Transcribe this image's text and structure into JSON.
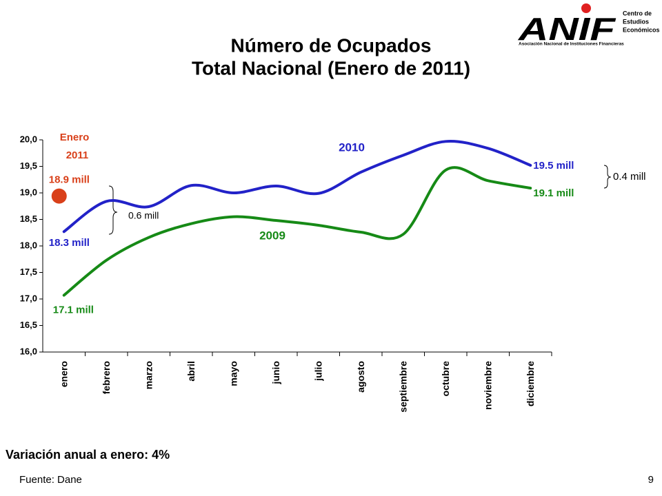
{
  "chart_data": {
    "type": "line",
    "title": [
      "Número de Ocupados",
      "Total Nacional (Enero de 2011)"
    ],
    "categories": [
      "enero",
      "febrero",
      "marzo",
      "abril",
      "mayo",
      "junio",
      "julio",
      "agosto",
      "septiembre",
      "octubre",
      "noviembre",
      "diciembre"
    ],
    "series": [
      {
        "name": "2010",
        "color": "#2222c8",
        "values": [
          18.27,
          18.84,
          18.74,
          19.14,
          19.0,
          19.13,
          18.99,
          19.39,
          19.71,
          19.97,
          19.84,
          19.52
        ],
        "value_labels": [
          "18.3 mill",
          null,
          null,
          null,
          null,
          null,
          null,
          null,
          null,
          null,
          null,
          "19.5 mill"
        ]
      },
      {
        "name": "2009",
        "color": "#168a16",
        "values": [
          17.07,
          17.73,
          18.16,
          18.42,
          18.55,
          18.48,
          18.39,
          18.26,
          18.22,
          19.43,
          19.23,
          19.09
        ],
        "value_labels": [
          "17.1 mill",
          null,
          null,
          null,
          null,
          null,
          null,
          null,
          null,
          null,
          null,
          "19.1 mill"
        ]
      },
      {
        "name": "Enero 2011",
        "color": "#d9401a",
        "values": [
          18.94,
          null,
          null,
          null,
          null,
          null,
          null,
          null,
          null,
          null,
          null,
          null
        ],
        "value_labels": [
          "18.9 mill",
          null,
          null,
          null,
          null,
          null,
          null,
          null,
          null,
          null,
          null,
          null
        ]
      }
    ],
    "ylim": [
      16.0,
      20.0
    ],
    "yticks": [
      {
        "value": 16.0,
        "label": "16,0"
      },
      {
        "value": 16.5,
        "label": "16,5"
      },
      {
        "value": 17.0,
        "label": "17,0"
      },
      {
        "value": 17.5,
        "label": "17,5"
      },
      {
        "value": 18.0,
        "label": "18,0"
      },
      {
        "value": 18.5,
        "label": "18,5"
      },
      {
        "value": 19.0,
        "label": "19,0"
      },
      {
        "value": 19.5,
        "label": "19,5"
      },
      {
        "value": 20.0,
        "label": "20,0"
      }
    ],
    "annotations": [
      "0.6 mill",
      "0.4 mill"
    ],
    "footnote": "Variación anual a enero: 4%"
  },
  "footer": {
    "source": "Fuente: Dane",
    "page": "9"
  },
  "logo": {
    "name": "ANIF",
    "org": [
      "Centro de",
      "Estudios",
      "Económicos"
    ],
    "subtitle": "Asociación Nacional de Instituciones Financieras"
  }
}
